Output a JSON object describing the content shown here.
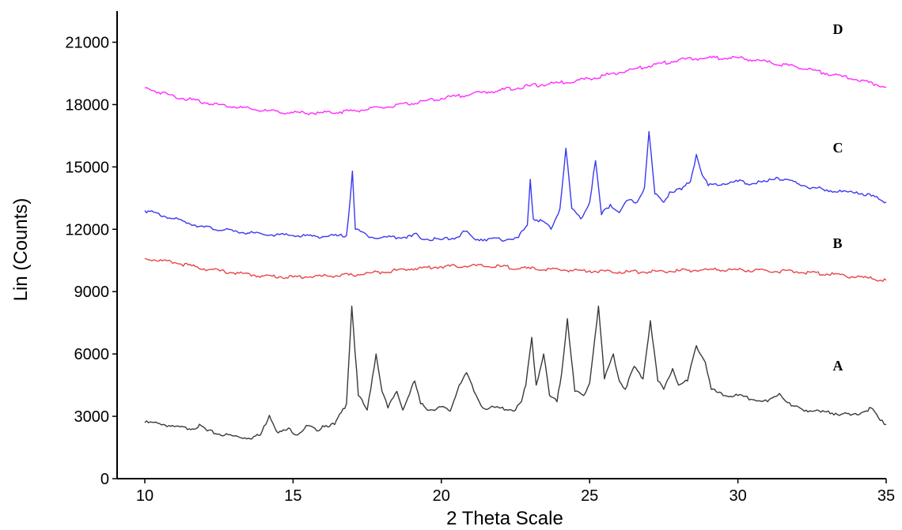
{
  "chart_data": {
    "type": "line",
    "title": "",
    "xlabel": "2 Theta Scale",
    "ylabel": "Lin (Counts)",
    "xlim": [
      9,
      35
    ],
    "ylim": [
      0,
      22500
    ],
    "x_ticks": [
      10,
      15,
      20,
      25,
      30,
      35
    ],
    "x_tick_labels": [
      "10",
      "15",
      "20",
      "25",
      "30",
      "35"
    ],
    "y_ticks": [
      0,
      3000,
      6000,
      9000,
      12000,
      15000,
      18000,
      21000
    ],
    "y_tick_labels": [
      "0",
      "3000",
      "6000",
      "9000",
      "12000",
      "15000",
      "18000",
      "21000"
    ],
    "grid": false,
    "legend": "none",
    "series": [
      {
        "name": "A",
        "color": "#3a3a3a",
        "label_at": [
          34.0,
          5200
        ],
        "points": [
          [
            10.0,
            2700
          ],
          [
            10.5,
            2650
          ],
          [
            11.0,
            2500
          ],
          [
            11.5,
            2400
          ],
          [
            11.9,
            2550
          ],
          [
            12.1,
            2300
          ],
          [
            12.5,
            2150
          ],
          [
            13.0,
            2050
          ],
          [
            13.5,
            1950
          ],
          [
            13.9,
            2100
          ],
          [
            14.2,
            3050
          ],
          [
            14.5,
            2200
          ],
          [
            14.9,
            2400
          ],
          [
            15.1,
            2100
          ],
          [
            15.5,
            2550
          ],
          [
            15.8,
            2300
          ],
          [
            16.0,
            2550
          ],
          [
            16.4,
            2600
          ],
          [
            16.8,
            3600
          ],
          [
            16.98,
            8300
          ],
          [
            17.2,
            4000
          ],
          [
            17.5,
            3300
          ],
          [
            17.8,
            6000
          ],
          [
            18.0,
            4200
          ],
          [
            18.2,
            3400
          ],
          [
            18.5,
            4200
          ],
          [
            18.7,
            3300
          ],
          [
            19.1,
            4700
          ],
          [
            19.3,
            3600
          ],
          [
            19.6,
            3300
          ],
          [
            20.0,
            3450
          ],
          [
            20.3,
            3250
          ],
          [
            20.6,
            4500
          ],
          [
            20.85,
            5100
          ],
          [
            21.1,
            4200
          ],
          [
            21.4,
            3400
          ],
          [
            22.0,
            3400
          ],
          [
            22.5,
            3300
          ],
          [
            22.7,
            3700
          ],
          [
            22.85,
            4500
          ],
          [
            23.05,
            6800
          ],
          [
            23.2,
            4500
          ],
          [
            23.45,
            6000
          ],
          [
            23.65,
            4000
          ],
          [
            23.9,
            3700
          ],
          [
            24.05,
            5000
          ],
          [
            24.25,
            7700
          ],
          [
            24.5,
            4200
          ],
          [
            24.8,
            4000
          ],
          [
            25.0,
            4600
          ],
          [
            25.3,
            8300
          ],
          [
            25.5,
            4800
          ],
          [
            25.8,
            6000
          ],
          [
            26.0,
            4700
          ],
          [
            26.2,
            4300
          ],
          [
            26.5,
            5400
          ],
          [
            26.8,
            4800
          ],
          [
            27.05,
            7600
          ],
          [
            27.3,
            4700
          ],
          [
            27.5,
            4300
          ],
          [
            27.8,
            5300
          ],
          [
            28.0,
            4500
          ],
          [
            28.3,
            4700
          ],
          [
            28.6,
            6400
          ],
          [
            28.9,
            5600
          ],
          [
            29.1,
            4300
          ],
          [
            29.5,
            4000
          ],
          [
            30.0,
            4000
          ],
          [
            30.5,
            3800
          ],
          [
            31.0,
            3700
          ],
          [
            31.4,
            4100
          ],
          [
            31.8,
            3500
          ],
          [
            32.3,
            3300
          ],
          [
            32.8,
            3200
          ],
          [
            33.3,
            3150
          ],
          [
            33.8,
            3050
          ],
          [
            34.2,
            3200
          ],
          [
            34.5,
            3400
          ],
          [
            34.8,
            2800
          ],
          [
            35.0,
            2600
          ]
        ]
      },
      {
        "name": "B",
        "color": "#e8454a",
        "label_at": [
          34.0,
          11100
        ],
        "points": [
          [
            10.0,
            10600
          ],
          [
            11.0,
            10400
          ],
          [
            12.0,
            10100
          ],
          [
            13.0,
            9900
          ],
          [
            14.0,
            9750
          ],
          [
            15.0,
            9700
          ],
          [
            16.0,
            9750
          ],
          [
            17.0,
            9800
          ],
          [
            18.0,
            9950
          ],
          [
            19.0,
            10100
          ],
          [
            20.0,
            10200
          ],
          [
            21.0,
            10250
          ],
          [
            22.0,
            10200
          ],
          [
            23.0,
            10100
          ],
          [
            24.0,
            10050
          ],
          [
            25.0,
            10000
          ],
          [
            26.0,
            9950
          ],
          [
            27.0,
            9950
          ],
          [
            28.0,
            10000
          ],
          [
            29.0,
            10050
          ],
          [
            30.0,
            10050
          ],
          [
            31.0,
            10000
          ],
          [
            32.0,
            9950
          ],
          [
            33.0,
            9850
          ],
          [
            34.0,
            9700
          ],
          [
            35.0,
            9550
          ]
        ]
      },
      {
        "name": "C",
        "color": "#3a3af0",
        "label_at": [
          34.0,
          15700
        ],
        "points": [
          [
            10.0,
            12900
          ],
          [
            11.0,
            12500
          ],
          [
            12.0,
            12100
          ],
          [
            13.0,
            11900
          ],
          [
            14.0,
            11750
          ],
          [
            15.0,
            11700
          ],
          [
            16.0,
            11650
          ],
          [
            16.8,
            11700
          ],
          [
            16.93,
            13500
          ],
          [
            17.0,
            14800
          ],
          [
            17.1,
            12000
          ],
          [
            17.5,
            11700
          ],
          [
            18.0,
            11600
          ],
          [
            19.0,
            11650
          ],
          [
            19.1,
            11800
          ],
          [
            19.3,
            11550
          ],
          [
            20.0,
            11500
          ],
          [
            20.5,
            11600
          ],
          [
            20.8,
            11900
          ],
          [
            21.1,
            11550
          ],
          [
            22.0,
            11500
          ],
          [
            22.6,
            11600
          ],
          [
            22.9,
            12200
          ],
          [
            23.0,
            14400
          ],
          [
            23.1,
            12500
          ],
          [
            23.4,
            12400
          ],
          [
            23.7,
            12000
          ],
          [
            24.0,
            13000
          ],
          [
            24.2,
            15900
          ],
          [
            24.4,
            13000
          ],
          [
            24.7,
            12500
          ],
          [
            25.0,
            13300
          ],
          [
            25.2,
            15300
          ],
          [
            25.4,
            12700
          ],
          [
            25.7,
            13200
          ],
          [
            26.0,
            12800
          ],
          [
            26.3,
            13400
          ],
          [
            26.6,
            13300
          ],
          [
            26.85,
            14000
          ],
          [
            27.0,
            16700
          ],
          [
            27.2,
            13700
          ],
          [
            27.5,
            13300
          ],
          [
            27.7,
            13800
          ],
          [
            28.1,
            13900
          ],
          [
            28.4,
            14300
          ],
          [
            28.6,
            15600
          ],
          [
            28.8,
            14600
          ],
          [
            29.0,
            14100
          ],
          [
            29.5,
            14200
          ],
          [
            30.0,
            14300
          ],
          [
            30.5,
            14200
          ],
          [
            31.0,
            14300
          ],
          [
            31.3,
            14500
          ],
          [
            32.0,
            14200
          ],
          [
            32.5,
            14000
          ],
          [
            33.0,
            13900
          ],
          [
            33.5,
            13800
          ],
          [
            34.0,
            13800
          ],
          [
            34.5,
            13600
          ],
          [
            35.0,
            13300
          ]
        ]
      },
      {
        "name": "D",
        "color": "#ff2cff",
        "label_at": [
          34.0,
          21400
        ],
        "points": [
          [
            10.0,
            18800
          ],
          [
            11.0,
            18400
          ],
          [
            12.0,
            18100
          ],
          [
            13.0,
            17900
          ],
          [
            14.0,
            17700
          ],
          [
            15.0,
            17600
          ],
          [
            16.0,
            17600
          ],
          [
            17.0,
            17700
          ],
          [
            18.0,
            17850
          ],
          [
            19.0,
            18050
          ],
          [
            20.0,
            18300
          ],
          [
            21.0,
            18500
          ],
          [
            22.0,
            18700
          ],
          [
            23.0,
            18900
          ],
          [
            24.0,
            19050
          ],
          [
            25.0,
            19250
          ],
          [
            26.0,
            19550
          ],
          [
            27.0,
            19850
          ],
          [
            28.0,
            20150
          ],
          [
            29.0,
            20250
          ],
          [
            30.0,
            20250
          ],
          [
            31.0,
            20050
          ],
          [
            32.0,
            19800
          ],
          [
            33.0,
            19500
          ],
          [
            34.0,
            19200
          ],
          [
            35.0,
            18850
          ]
        ]
      }
    ]
  }
}
